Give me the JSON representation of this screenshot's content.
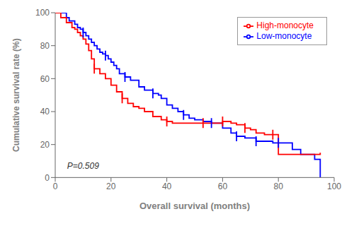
{
  "chart_data": {
    "type": "step",
    "title": "",
    "xlabel": "Overall survival (months)",
    "ylabel": "Cumulative survival rate (%)",
    "xlim": [
      0,
      100
    ],
    "ylim": [
      0,
      100
    ],
    "xticks": [
      0,
      20,
      40,
      60,
      80,
      100
    ],
    "yticks": [
      0,
      20,
      40,
      60,
      80,
      100
    ],
    "grid": false,
    "legend": "upper right",
    "annotations": [
      {
        "text": "P=0.509",
        "x": 3,
        "y": 7
      }
    ],
    "series": [
      {
        "name": "Low-monocyte",
        "color": "#0000FF",
        "x": [
          0,
          4,
          5,
          7,
          8,
          9,
          10,
          11,
          12,
          13,
          14,
          15,
          16,
          17,
          18,
          19,
          20,
          21,
          22,
          23,
          25,
          27,
          30,
          32,
          35,
          37,
          38,
          40,
          42,
          44,
          46,
          48,
          50,
          53,
          56,
          60,
          63,
          65,
          68,
          72,
          75,
          78,
          80,
          85,
          88,
          93,
          95
        ],
        "values": [
          100,
          97,
          95,
          93,
          91,
          90,
          88,
          86,
          84,
          82,
          80,
          78,
          76,
          75,
          74,
          72,
          70,
          68,
          66,
          63,
          61,
          59,
          55,
          53,
          51,
          50,
          48,
          44,
          42,
          40,
          38,
          36,
          35,
          34,
          33,
          30,
          27,
          25,
          24,
          22,
          22,
          21,
          21,
          17,
          14,
          11,
          0
        ],
        "censor_x": [
          10,
          18,
          25,
          35,
          46,
          56,
          65,
          72,
          80
        ],
        "censor_y": [
          88,
          74,
          61,
          51,
          38,
          33,
          25,
          22,
          21
        ]
      },
      {
        "name": "High-monocyte",
        "color": "#FF0000",
        "x": [
          0,
          2,
          4,
          6,
          7,
          8,
          9,
          10,
          11,
          12,
          13,
          14,
          16,
          18,
          20,
          22,
          24,
          26,
          28,
          30,
          32,
          35,
          38,
          40,
          42,
          44,
          48,
          53,
          55,
          58,
          60,
          63,
          65,
          68,
          70,
          72,
          75,
          78,
          80,
          85,
          88,
          95
        ],
        "values": [
          100,
          97,
          94,
          91,
          90,
          88,
          86,
          84,
          81,
          77,
          72,
          66,
          63,
          60,
          56,
          52,
          48,
          45,
          43,
          42,
          40,
          37,
          35,
          34,
          33,
          33,
          33,
          33,
          33,
          33,
          34,
          33,
          32,
          30,
          29,
          27,
          26,
          26,
          14,
          14,
          14,
          15
        ],
        "censor_x": [
          14,
          24,
          40,
          53,
          60,
          68,
          78
        ],
        "censor_y": [
          66,
          48,
          34,
          33,
          34,
          30,
          26
        ]
      }
    ]
  }
}
